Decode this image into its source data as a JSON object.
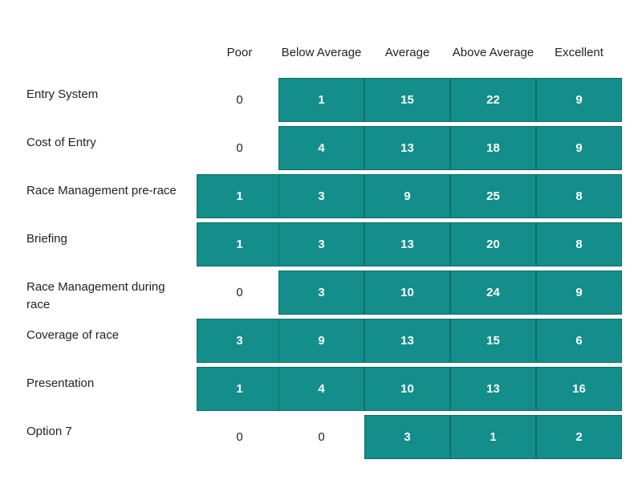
{
  "chart_data": {
    "type": "table",
    "title": "",
    "columns": [
      "Poor",
      "Below Average",
      "Average",
      "Above Average",
      "Excellent"
    ],
    "rows": [
      {
        "label": "Entry System",
        "values": [
          0,
          1,
          15,
          22,
          9
        ]
      },
      {
        "label": "Cost of Entry",
        "values": [
          0,
          4,
          13,
          18,
          9
        ]
      },
      {
        "label": "Race Management pre-race",
        "values": [
          1,
          3,
          9,
          25,
          8
        ]
      },
      {
        "label": "Briefing",
        "values": [
          1,
          3,
          13,
          20,
          8
        ]
      },
      {
        "label": "Race Management during race",
        "values": [
          0,
          3,
          10,
          24,
          9
        ]
      },
      {
        "label": "Coverage of race",
        "values": [
          3,
          9,
          13,
          15,
          6
        ]
      },
      {
        "label": "Presentation",
        "values": [
          1,
          4,
          10,
          13,
          16
        ]
      },
      {
        "label": "Option 7",
        "values": [
          0,
          0,
          3,
          1,
          2
        ]
      }
    ],
    "fill_color": "#138e8a"
  }
}
